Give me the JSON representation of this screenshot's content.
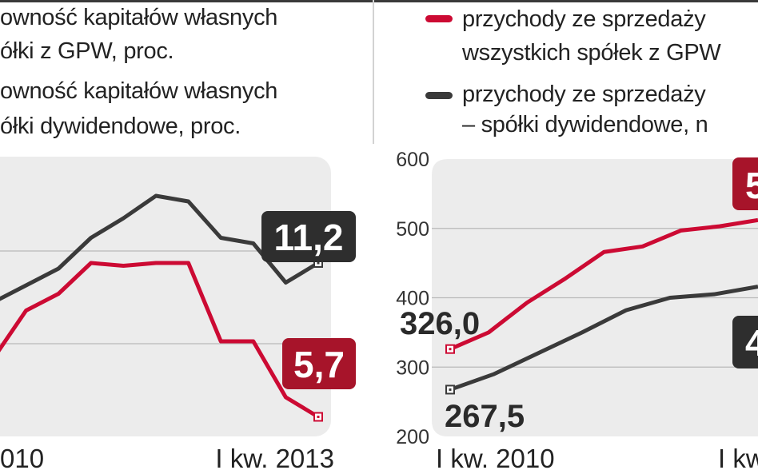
{
  "colors": {
    "red": "#cc0a33",
    "dark": "#3a3a3a",
    "red_box": "#a7142a",
    "dark_box": "#2e2e2e",
    "panel": "#ececec"
  },
  "left_legend": {
    "line1": "owność kapitałów własnych",
    "line2": "ółki z GPW, proc.",
    "line3": "owność kapitałów własnych",
    "line4": "ółki dywidendowe, proc."
  },
  "right_legend": {
    "line1": "przychody ze sprzedaży",
    "line2": "wszystkich spółek z GPW",
    "line3": "przychody ze sprzedaży",
    "line4": "– spółki dywidendowe, n"
  },
  "chart_data": [
    {
      "type": "line",
      "x_labels": [
        "010",
        "I kw. 2013"
      ],
      "series": [
        {
          "name": "owność kapitałów własnych ółki z GPW, proc.",
          "color": "#cc0a33",
          "values": [
            7.8,
            9.5,
            10.1,
            11.2,
            11.1,
            11.2,
            11.2,
            8.4,
            8.4,
            6.4,
            5.7
          ]
        },
        {
          "name": "owność kapitałów własnych ółki dywidendowe, proc.",
          "color": "#3a3a3a",
          "values": [
            9.8,
            10.4,
            11.0,
            12.1,
            12.8,
            13.6,
            13.4,
            12.1,
            11.9,
            10.5,
            11.2
          ]
        }
      ],
      "end_labels": [
        "11,2",
        "5,7"
      ],
      "ylim": [
        5,
        15
      ],
      "grid": true
    },
    {
      "type": "line",
      "x_labels": [
        "I kw. 2010",
        "I kw"
      ],
      "y_ticks": [
        "600",
        "500",
        "400",
        "300",
        "200"
      ],
      "ylim": [
        200,
        600
      ],
      "series": [
        {
          "name": "przychody ze sprzedaży wszystkich spółek z GPW",
          "color": "#cc0a33",
          "values": [
            326.0,
            350,
            393,
            428,
            466,
            474,
            497,
            503,
            512
          ],
          "start_label": "326,0",
          "end_label": "5"
        },
        {
          "name": "przychody ze sprzedaży – spółki dywidendowe",
          "color": "#3a3a3a",
          "values": [
            267.5,
            290,
            320,
            350,
            382,
            400,
            405,
            416
          ],
          "start_label": "267,5",
          "end_label": "4"
        }
      ],
      "grid": true
    }
  ]
}
